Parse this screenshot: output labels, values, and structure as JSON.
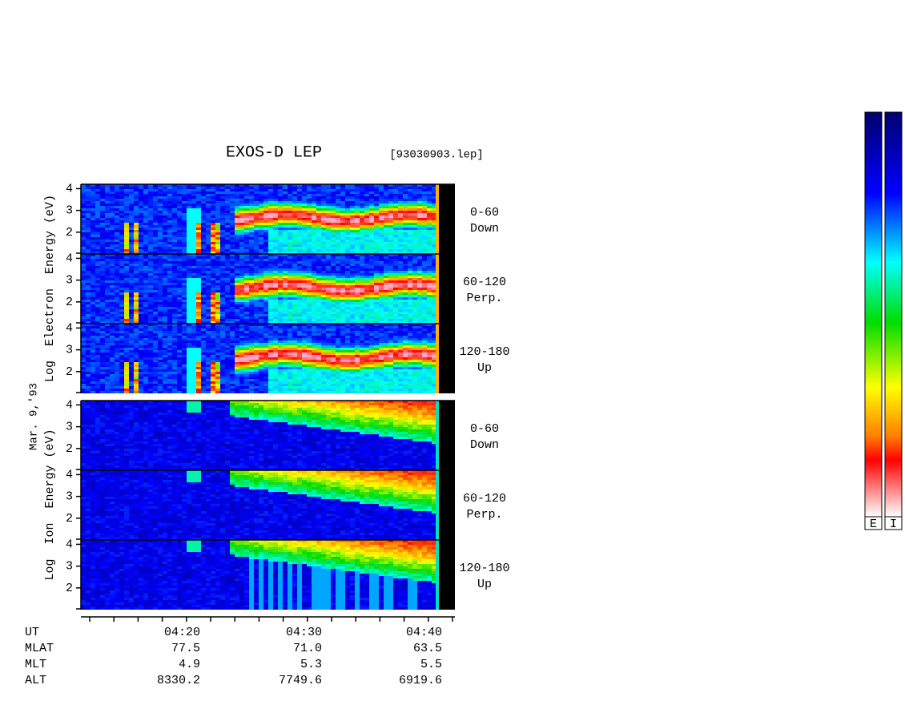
{
  "header": {
    "title": "EXOS-D LEP",
    "file": "[93030903.lep]"
  },
  "date": "Mar. 9,'93",
  "groups": [
    {
      "ylabel": "Log  Electron  Energy (eV)",
      "panels": [
        {
          "yticks": [
            2,
            3,
            4
          ],
          "ylim": [
            1,
            4.2
          ],
          "angle": "0-60",
          "direction": "Down"
        },
        {
          "yticks": [
            2,
            3,
            4
          ],
          "ylim": [
            1,
            4.2
          ],
          "angle": "60-120",
          "direction": "Perp."
        },
        {
          "yticks": [
            2,
            3,
            4
          ],
          "ylim": [
            1,
            4.2
          ],
          "angle": "120-180",
          "direction": "Up"
        }
      ]
    },
    {
      "ylabel": "Log  Ion  Energy (eV)",
      "panels": [
        {
          "yticks": [
            2,
            3,
            4
          ],
          "ylim": [
            1,
            4.2
          ],
          "angle": "0-60",
          "direction": "Down"
        },
        {
          "yticks": [
            2,
            3,
            4
          ],
          "ylim": [
            1,
            4.2
          ],
          "angle": "60-120",
          "direction": "Perp."
        },
        {
          "yticks": [
            2,
            3,
            4
          ],
          "ylim": [
            1,
            4.2
          ],
          "angle": "120-180",
          "direction": "Up"
        }
      ]
    }
  ],
  "orbit": {
    "labels": [
      "UT",
      "MLAT",
      "MLT",
      "ALT"
    ],
    "columns": [
      [
        "04:20",
        "77.5",
        "4.9",
        "8330.2"
      ],
      [
        "04:30",
        "71.0",
        "5.3",
        "7749.6"
      ],
      [
        "04:40",
        "63.5",
        "5.5",
        "6919.6"
      ]
    ]
  },
  "colorbars": [
    "E",
    "I"
  ]
}
